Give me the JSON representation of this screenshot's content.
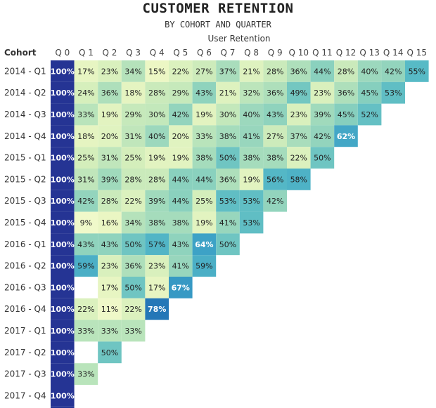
{
  "chart_data": {
    "type": "heatmap",
    "title": "CUSTOMER RETENTION",
    "subtitle": "BY COHORT AND QUARTER",
    "column_group_header": "User Retention",
    "row_header": "Cohort",
    "columns": [
      "Q 0",
      "Q 1",
      "Q 2",
      "Q 3",
      "Q 4",
      "Q 5",
      "Q 6",
      "Q 7",
      "Q 8",
      "Q 9",
      "Q 10",
      "Q 11",
      "Q 12",
      "Q 13",
      "Q 14",
      "Q 15"
    ],
    "rows": [
      "2014 - Q1",
      "2014 - Q2",
      "2014 - Q3",
      "2014 - Q4",
      "2015 - Q1",
      "2015 - Q2",
      "2015 - Q3",
      "2015 - Q4",
      "2016 - Q1",
      "2016 - Q2",
      "2016 - Q3",
      "2016 - Q4",
      "2017 - Q1",
      "2017 - Q2",
      "2017 - Q3",
      "2017 - Q4"
    ],
    "values": [
      [
        100,
        17,
        23,
        34,
        15,
        22,
        27,
        37,
        21,
        28,
        36,
        44,
        28,
        40,
        42,
        55
      ],
      [
        100,
        24,
        36,
        18,
        28,
        29,
        43,
        21,
        32,
        36,
        49,
        23,
        36,
        45,
        53
      ],
      [
        100,
        33,
        19,
        29,
        30,
        42,
        19,
        30,
        40,
        43,
        23,
        39,
        45,
        52
      ],
      [
        100,
        18,
        20,
        31,
        40,
        20,
        33,
        38,
        41,
        27,
        37,
        42,
        62
      ],
      [
        100,
        25,
        31,
        25,
        19,
        19,
        38,
        50,
        38,
        38,
        22,
        50
      ],
      [
        100,
        31,
        39,
        28,
        28,
        44,
        44,
        36,
        19,
        56,
        58
      ],
      [
        100,
        42,
        28,
        22,
        39,
        44,
        25,
        53,
        53,
        42
      ],
      [
        100,
        9,
        16,
        34,
        38,
        38,
        19,
        41,
        53
      ],
      [
        100,
        43,
        43,
        50,
        57,
        43,
        64,
        50
      ],
      [
        100,
        59,
        23,
        36,
        23,
        41,
        59
      ],
      [
        100,
        null,
        17,
        50,
        17,
        67
      ],
      [
        100,
        22,
        11,
        22,
        78
      ],
      [
        100,
        33,
        33,
        33
      ],
      [
        100,
        null,
        50
      ],
      [
        100,
        33
      ],
      [
        100
      ]
    ],
    "value_format": "percent",
    "color_scale": {
      "low": "#f1f9c9",
      "mid": "#7fcdbb",
      "high": "#2c7fb8",
      "q0": "#253494"
    }
  }
}
